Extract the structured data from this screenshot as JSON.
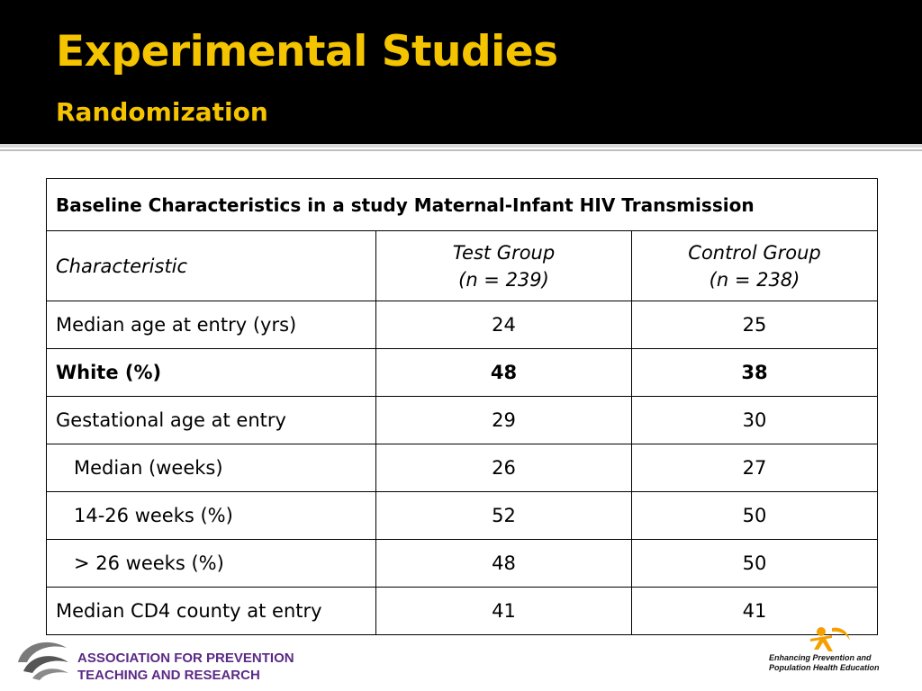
{
  "slide": {
    "title": "Experimental Studies",
    "subtitle": "Randomization"
  },
  "table": {
    "caption": "Baseline Characteristics in a study Maternal-Infant HIV Transmission",
    "headers": {
      "characteristic": "Characteristic",
      "test_group": "Test Group",
      "test_group_n": "(n = 239)",
      "control_group": "Control Group",
      "control_group_n": "(n = 238)"
    },
    "rows": [
      {
        "label": "Median age at entry (yrs)",
        "test": "24",
        "control": "25"
      },
      {
        "label": "White (%)",
        "test": "48",
        "control": "38"
      },
      {
        "label": "Gestational age at entry",
        "test": "29",
        "control": "30"
      },
      {
        "label": "Median (weeks)",
        "test": "26",
        "control": "27"
      },
      {
        "label": "14-26 weeks (%)",
        "test": "52",
        "control": "50"
      },
      {
        "label": "> 26 weeks (%)",
        "test": "48",
        "control": "50"
      },
      {
        "label": "Median CD4 county at entry",
        "test": "41",
        "control": "41"
      }
    ]
  },
  "footer": {
    "left_logo_line1": "ASSOCIATION FOR PREVENTION",
    "left_logo_line2": "TEACHING AND RESEARCH",
    "right_logo_line1": "Enhancing Prevention and",
    "right_logo_line2": "Population Health Education"
  },
  "colors": {
    "title": "#f5c400",
    "header_background": "#000000",
    "apt_purple": "#5b2a86",
    "ep_orange": "#f5a000"
  }
}
